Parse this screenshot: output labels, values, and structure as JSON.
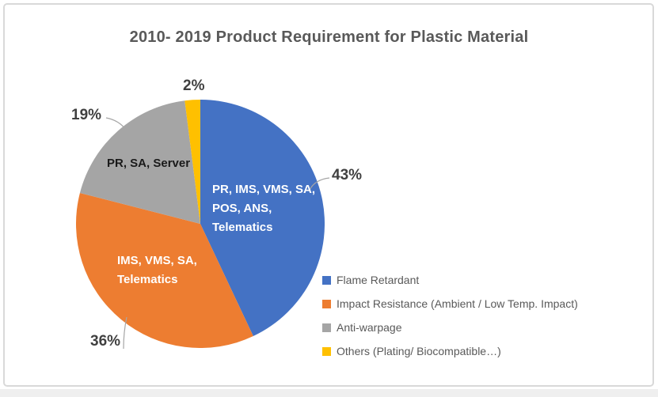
{
  "chart_data": {
    "type": "pie",
    "title": "2010- 2019 Product Requirement for Plastic Material",
    "start_angle_deg": 0,
    "direction": "clockwise",
    "legend_position": "bottom-right",
    "slices": [
      {
        "id": "flame-retardant",
        "label": "Flame Retardant",
        "value": 43,
        "pct_label": "43%",
        "color": "#4472C4",
        "lines": [
          "PR, IMS, VMS, SA,",
          "POS, ANS,",
          "Telematics"
        ]
      },
      {
        "id": "impact-resistance",
        "label": "Impact Resistance (Ambient / Low Temp. Impact)",
        "value": 36,
        "pct_label": "36%",
        "color": "#ED7D31",
        "lines": [
          "IMS, VMS, SA,",
          "Telematics"
        ]
      },
      {
        "id": "anti-warpage",
        "label": "Anti-warpage",
        "value": 19,
        "pct_label": "19%",
        "color": "#A5A5A5",
        "lines": [
          "PR, SA, Server"
        ]
      },
      {
        "id": "others",
        "label": "Others (Plating/ Biocompatible…)",
        "value": 2,
        "pct_label": "2%",
        "color": "#FFC000",
        "lines": []
      }
    ],
    "colors": {
      "title_text": "#595959",
      "legend_text": "#595959",
      "pct_text": "#404040",
      "leader_line": "#A6A6A6",
      "frame_border": "#D9D9D9",
      "inner_label_light": "#FFFFFF",
      "inner_label_dark": "#1A1A1A"
    }
  }
}
